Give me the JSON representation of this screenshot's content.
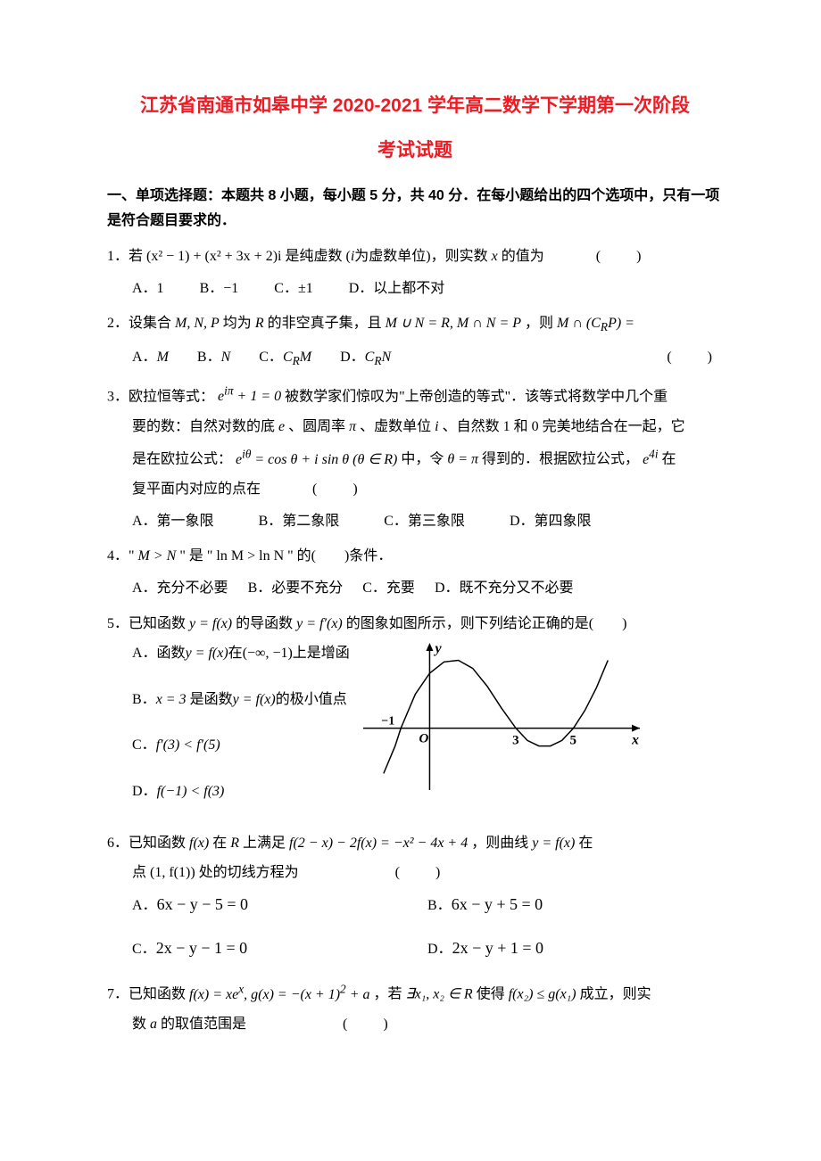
{
  "title": "江苏省南通市如皋中学 2020-2021 学年高二数学下学期第一次阶段",
  "subtitle": "考试试题",
  "section_header": "一、单项选择题：本题共 8 小题，每小题 5 分，共 40 分．在每小题给出的四个选项中，只有一项是符合题目要求的．",
  "q1": {
    "text_pre": "1．若",
    "expr": "(x² − 1) + (x² + 3x + 2)i",
    "text_mid": "是纯虚数 (",
    "i_unit": "i",
    "text_mid2": "为虚数单位)，则实数",
    "x_var": "x",
    "text_post": "的值为",
    "A": "A．1",
    "B": "B．−1",
    "C": "C．±1",
    "D": "D．以上都不对"
  },
  "q2": {
    "text_pre": "2．设集合",
    "mnp": "M, N, P",
    "text_mid1": "均为",
    "R": "R",
    "text_mid2": "的非空真子集，且",
    "cond": "M ∪ N = R, M ∩ N = P",
    "text_mid3": "，则",
    "expr": "M ∩ (C",
    "sub": "R",
    "expr2": "P) =",
    "A_label": "A．",
    "A_val": "M",
    "B_label": "B．",
    "B_val": "N",
    "C_label": "C．",
    "C_val_pre": "C",
    "C_sub": "R",
    "C_val_post": "M",
    "D_label": "D．",
    "D_val_pre": "C",
    "D_sub": "R",
    "D_val_post": "N"
  },
  "q3": {
    "text1": "3．欧拉恒等式：",
    "expr1": "e^(iπ) + 1 = 0",
    "text2": "被数学家们惊叹为\"上帝创造的等式\"．该等式将数学中几个重",
    "text3": "要的数：自然对数的底",
    "e": "e",
    "text4": "、圆周率",
    "pi": "π",
    "text5": "、虚数单位",
    "i": "i",
    "text6": "、自然数 1 和 0 完美地结合在一起，它",
    "text7": "是在欧拉公式：",
    "expr2": "e^(iθ) = cos θ + i sin θ (θ ∈ R)",
    "text8": "中，令",
    "expr3": "θ = π",
    "text9": "得到的．根据欧拉公式，",
    "expr4": "e^(4i)",
    "text10": "在",
    "text11": "复平面内对应的点在",
    "A": "A．第一象限",
    "B": "B．第二象限",
    "C": "C．第三象限",
    "D": "D．第四象限"
  },
  "q4": {
    "text1": "4．\"",
    "expr1": "M > N",
    "text2": "\" 是 \"",
    "expr2": "ln M > ln N",
    "text3": "\" 的(　　)条件．",
    "A": "A．充分不必要",
    "B": "B．必要不充分",
    "C": "C．充要",
    "D": "D．既不充分又不必要"
  },
  "q5": {
    "text1": "5．已知函数",
    "expr1": "y = f(x)",
    "text2": "的导函数",
    "expr2": "y = f′(x)",
    "text3": "的图象如图所示，则下列结论正确的是(　　)",
    "A1": "A．函数",
    "A_expr": "y = f(x)",
    "A2": "在",
    "A_int": "(−∞, −1)",
    "A3": "上是增函",
    "B1": "B．",
    "B_expr1": "x = 3",
    "B2": "是函数",
    "B_expr2": "y = f(x)",
    "B3": "的极小值点",
    "C_label": "C．",
    "C_expr": "f′(3) < f′(5)",
    "D_label": "D．",
    "D_expr": "f(−1) < f(3)",
    "chart": {
      "type": "curve",
      "background": "#ffffff",
      "axis_color": "#000000",
      "curve_color": "#000000",
      "curve_width": 1.5,
      "x_labels": [
        {
          "v": "−1",
          "x": -1
        },
        {
          "v": "O",
          "x": 0
        },
        {
          "v": "3",
          "x": 3
        },
        {
          "v": "5",
          "x": 5
        }
      ],
      "y_label": "y",
      "x_axis_label": "x",
      "x_range": [
        -2,
        7
      ],
      "y_range": [
        -1.5,
        2.5
      ],
      "curve_points": [
        [
          -1.6,
          -1.4
        ],
        [
          -1.2,
          -0.55
        ],
        [
          -1,
          0
        ],
        [
          -0.5,
          1.05
        ],
        [
          0,
          1.7
        ],
        [
          0.5,
          2.05
        ],
        [
          1,
          2.1
        ],
        [
          1.5,
          1.85
        ],
        [
          2,
          1.3
        ],
        [
          2.5,
          0.62
        ],
        [
          3,
          0
        ],
        [
          3.4,
          -0.38
        ],
        [
          3.8,
          -0.55
        ],
        [
          4.2,
          -0.55
        ],
        [
          4.6,
          -0.38
        ],
        [
          5,
          0
        ],
        [
          5.4,
          0.55
        ],
        [
          5.8,
          1.25
        ],
        [
          6.2,
          2.1
        ]
      ]
    }
  },
  "q6": {
    "text1": "6．已知函数",
    "expr1": "f(x)",
    "text2": "在",
    "R": "R",
    "text3": "上满足",
    "expr2": "f(2 − x) − 2f(x) = −x² − 4x + 4",
    "text4": "，则曲线",
    "expr3": "y = f(x)",
    "text5": "在",
    "text6": "点",
    "expr4": "(1, f(1))",
    "text7": "处的切线方程为",
    "A_label": "A．",
    "A_expr": "6x − y − 5 = 0",
    "B_label": "B．",
    "B_expr": "6x − y + 5 = 0",
    "C_label": "C．",
    "C_expr": "2x − y − 1 = 0",
    "D_label": "D．",
    "D_expr": "2x − y + 1 = 0"
  },
  "q7": {
    "text1": "7．已知函数",
    "expr1": "f(x) = xe^x, g(x) = −(x + 1)² + a",
    "text2": "，若",
    "exists": "∃x₁, x₂ ∈ R",
    "text3": "使得",
    "expr2": "f(x₂) ≤ g(x₁)",
    "text4": "成立，则实",
    "text5": "数",
    "a": "a",
    "text6": "的取值范围是"
  },
  "colors": {
    "title_color": "#ed1c24",
    "text_color": "#000000",
    "background": "#ffffff"
  }
}
